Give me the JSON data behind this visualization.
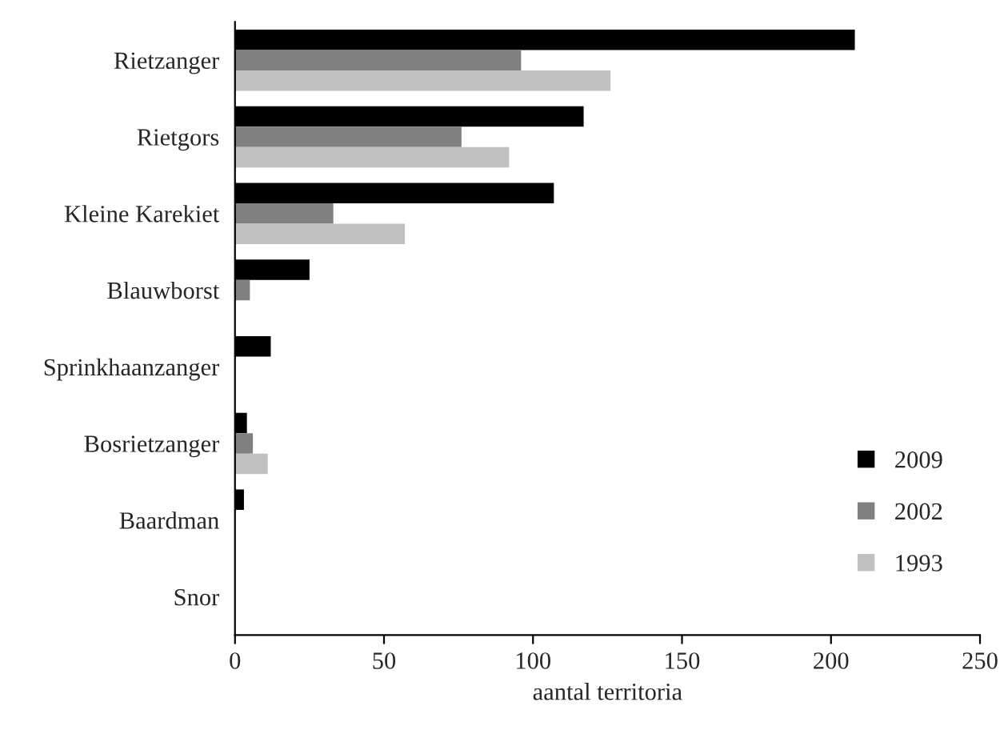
{
  "chart_data": {
    "type": "bar",
    "orientation": "horizontal",
    "xlabel": "aantal territoria",
    "categories": [
      "Rietzanger",
      "Rietgors",
      "Kleine Karekiet",
      "Blauwborst",
      "Sprinkhaanzanger",
      "Bosrietzanger",
      "Baardman",
      "Snor"
    ],
    "series": [
      {
        "name": "2009",
        "color": "#000000",
        "values": [
          208,
          117,
          107,
          25,
          12,
          4,
          3,
          0
        ]
      },
      {
        "name": "2002",
        "color": "#808080",
        "values": [
          96,
          76,
          33,
          5,
          0,
          6,
          0,
          0
        ]
      },
      {
        "name": "1993",
        "color": "#c0c0c0",
        "values": [
          126,
          92,
          57,
          0,
          0,
          11,
          0,
          0
        ]
      }
    ],
    "xlim": [
      0,
      250
    ],
    "xticks": [
      0,
      50,
      100,
      150,
      200,
      250
    ],
    "grid": false,
    "legend": "bottom right"
  }
}
